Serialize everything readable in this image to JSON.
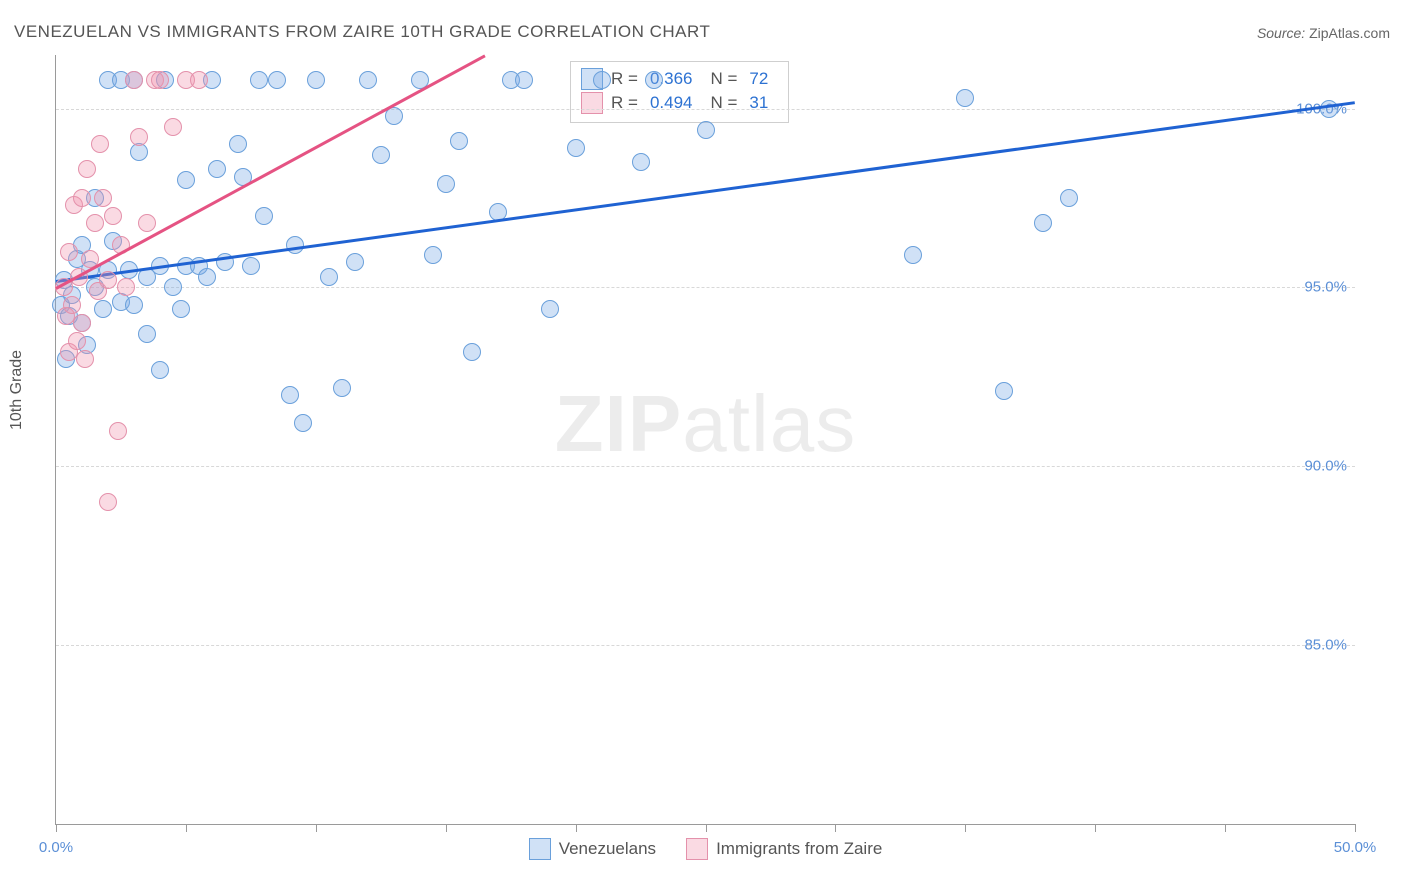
{
  "title": "VENEZUELAN VS IMMIGRANTS FROM ZAIRE 10TH GRADE CORRELATION CHART",
  "source_label": "Source:",
  "source_value": "ZipAtlas.com",
  "ylabel": "10th Grade",
  "watermark_a": "ZIP",
  "watermark_b": "atlas",
  "chart": {
    "type": "scatter",
    "xlim": [
      0,
      50
    ],
    "ylim": [
      80,
      101.5
    ],
    "x_ticks": [
      0,
      5,
      10,
      15,
      20,
      25,
      30,
      35,
      40,
      45,
      50
    ],
    "x_tick_labels": {
      "0": "0.0%",
      "50": "50.0%"
    },
    "y_gridlines": [
      85,
      90,
      95,
      100
    ],
    "y_tick_labels": {
      "85": "85.0%",
      "90": "90.0%",
      "95": "95.0%",
      "100": "100.0%"
    },
    "grid_color": "#d8d8d8",
    "axis_color": "#9a9a9a",
    "tick_label_color": "#5b8fd6",
    "background_color": "#ffffff",
    "marker_radius": 9,
    "series": [
      {
        "name": "Venezuelans",
        "fill": "rgba(120,170,230,0.35)",
        "stroke": "#6aa0db",
        "trend_color": "#1f62d2",
        "trend_width": 3,
        "r_label": "R =",
        "r_value": "0.366",
        "n_label": "N =",
        "n_value": "72",
        "trend": {
          "x1": 0,
          "y1": 95.2,
          "x2": 50,
          "y2": 100.2
        },
        "points": [
          [
            0.2,
            94.5
          ],
          [
            0.3,
            95.2
          ],
          [
            0.4,
            93.0
          ],
          [
            0.5,
            94.2
          ],
          [
            0.6,
            94.8
          ],
          [
            0.8,
            95.8
          ],
          [
            1.0,
            94.0
          ],
          [
            1.0,
            96.2
          ],
          [
            1.2,
            93.4
          ],
          [
            1.3,
            95.5
          ],
          [
            1.5,
            97.5
          ],
          [
            1.5,
            95.0
          ],
          [
            1.8,
            94.4
          ],
          [
            2.0,
            95.5
          ],
          [
            2.0,
            100.8
          ],
          [
            2.2,
            96.3
          ],
          [
            2.5,
            94.6
          ],
          [
            2.5,
            100.8
          ],
          [
            2.8,
            95.5
          ],
          [
            3.0,
            94.5
          ],
          [
            3.0,
            100.8
          ],
          [
            3.2,
            98.8
          ],
          [
            3.5,
            95.3
          ],
          [
            3.5,
            93.7
          ],
          [
            4.0,
            95.6
          ],
          [
            4.0,
            92.7
          ],
          [
            4.2,
            100.8
          ],
          [
            4.5,
            95.0
          ],
          [
            4.8,
            94.4
          ],
          [
            5.0,
            95.6
          ],
          [
            5.0,
            98.0
          ],
          [
            5.5,
            95.6
          ],
          [
            5.8,
            95.3
          ],
          [
            6.0,
            100.8
          ],
          [
            6.2,
            98.3
          ],
          [
            6.5,
            95.7
          ],
          [
            7.0,
            99.0
          ],
          [
            7.2,
            98.1
          ],
          [
            7.5,
            95.6
          ],
          [
            7.8,
            100.8
          ],
          [
            8.0,
            97.0
          ],
          [
            8.5,
            100.8
          ],
          [
            9.0,
            92.0
          ],
          [
            9.2,
            96.2
          ],
          [
            9.5,
            91.2
          ],
          [
            10.0,
            100.8
          ],
          [
            10.5,
            95.3
          ],
          [
            11.0,
            92.2
          ],
          [
            11.5,
            95.7
          ],
          [
            12.0,
            100.8
          ],
          [
            12.5,
            98.7
          ],
          [
            13.0,
            99.8
          ],
          [
            14.0,
            100.8
          ],
          [
            14.5,
            95.9
          ],
          [
            15.0,
            97.9
          ],
          [
            15.5,
            99.1
          ],
          [
            16.0,
            93.2
          ],
          [
            17.0,
            97.1
          ],
          [
            17.5,
            100.8
          ],
          [
            18.0,
            100.8
          ],
          [
            19.0,
            94.4
          ],
          [
            20.0,
            98.9
          ],
          [
            21.0,
            100.8
          ],
          [
            22.5,
            98.5
          ],
          [
            23.0,
            100.8
          ],
          [
            25.0,
            99.4
          ],
          [
            33.0,
            95.9
          ],
          [
            35.0,
            100.3
          ],
          [
            36.5,
            92.1
          ],
          [
            38.0,
            96.8
          ],
          [
            39.0,
            97.5
          ],
          [
            49.0,
            100.0
          ]
        ]
      },
      {
        "name": "Immigrants from Zaire",
        "fill": "rgba(240,150,175,0.35)",
        "stroke": "#e491ab",
        "trend_color": "#e55383",
        "trend_width": 3,
        "r_label": "R =",
        "r_value": "0.494",
        "n_label": "N =",
        "n_value": "31",
        "trend": {
          "x1": 0,
          "y1": 95.0,
          "x2": 16.5,
          "y2": 101.5
        },
        "points": [
          [
            0.3,
            95.0
          ],
          [
            0.4,
            94.2
          ],
          [
            0.5,
            93.2
          ],
          [
            0.5,
            96.0
          ],
          [
            0.6,
            94.5
          ],
          [
            0.7,
            97.3
          ],
          [
            0.8,
            93.5
          ],
          [
            0.9,
            95.3
          ],
          [
            1.0,
            94.0
          ],
          [
            1.0,
            97.5
          ],
          [
            1.1,
            93.0
          ],
          [
            1.2,
            98.3
          ],
          [
            1.3,
            95.8
          ],
          [
            1.5,
            96.8
          ],
          [
            1.6,
            94.9
          ],
          [
            1.7,
            99.0
          ],
          [
            1.8,
            97.5
          ],
          [
            2.0,
            89.0
          ],
          [
            2.0,
            95.2
          ],
          [
            2.2,
            97.0
          ],
          [
            2.4,
            91.0
          ],
          [
            2.5,
            96.2
          ],
          [
            2.7,
            95.0
          ],
          [
            3.0,
            100.8
          ],
          [
            3.2,
            99.2
          ],
          [
            3.5,
            96.8
          ],
          [
            3.8,
            100.8
          ],
          [
            4.0,
            100.8
          ],
          [
            4.5,
            99.5
          ],
          [
            5.0,
            100.8
          ],
          [
            5.5,
            100.8
          ]
        ]
      }
    ]
  }
}
